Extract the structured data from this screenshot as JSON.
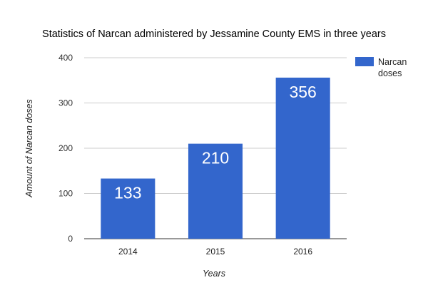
{
  "chart_data": {
    "type": "bar",
    "title": "Statistics of Narcan administered by Jessamine County EMS in three years",
    "xlabel": "Years",
    "ylabel": "Amount of Narcan doses",
    "categories": [
      "2014",
      "2015",
      "2016"
    ],
    "series": [
      {
        "name": "Narcan doses",
        "values": [
          133,
          210,
          356
        ],
        "color": "#3366cc"
      }
    ],
    "data_labels": [
      "133",
      "210",
      "356"
    ],
    "ylim": [
      0,
      400
    ],
    "yticks": [
      "0",
      "100",
      "200",
      "300",
      "400"
    ],
    "grid": true,
    "legend": {
      "position": "right",
      "lines": [
        "Narcan",
        "doses"
      ]
    }
  }
}
